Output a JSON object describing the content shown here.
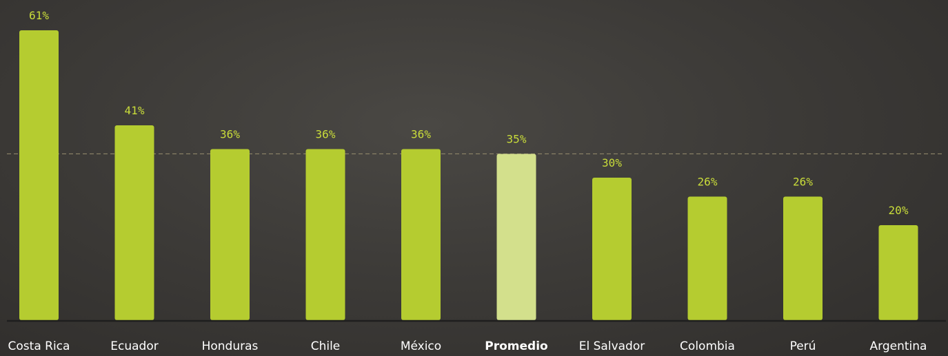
{
  "chart_data": {
    "type": "bar",
    "categories": [
      "Costa Rica",
      "Ecuador",
      "Honduras",
      "Chile",
      "México",
      "Promedio",
      "El Salvador",
      "Colombia",
      "Perú",
      "Argentina"
    ],
    "values": [
      61,
      41,
      36,
      36,
      36,
      35,
      30,
      26,
      26,
      20
    ],
    "value_labels": [
      "61%",
      "41%",
      "36%",
      "36%",
      "36%",
      "35%",
      "30%",
      "26%",
      "26%",
      "20%"
    ],
    "highlight_category": "Promedio",
    "reference_line": 35,
    "ylim": [
      0,
      63
    ],
    "grid": false,
    "title": "",
    "xlabel": "",
    "ylabel": "",
    "colors": {
      "bar": "#b5cc30",
      "highlight_bar": "#d3e08c",
      "value_label": "#c9dc3a",
      "category_label": "#ffffff",
      "baseline": "#1e1e1e",
      "reference_line": "#8f8669"
    }
  }
}
